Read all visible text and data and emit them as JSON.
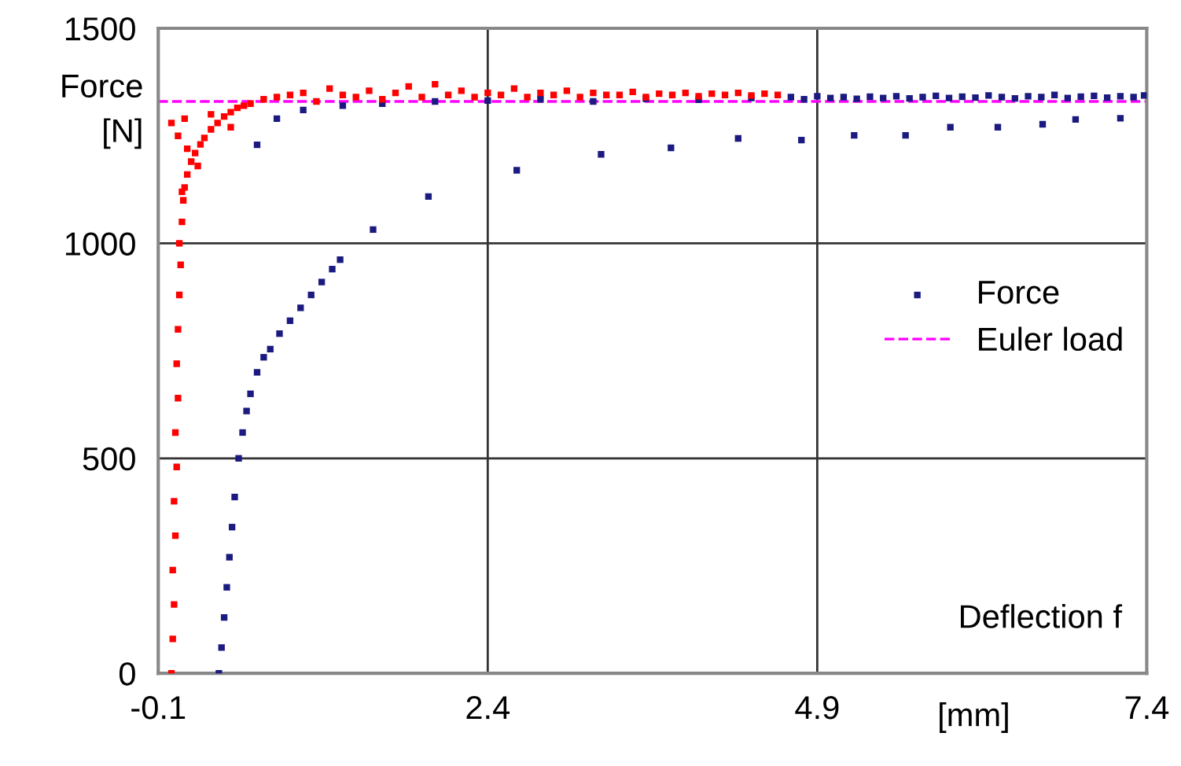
{
  "chart_data": {
    "type": "scatter",
    "ylabel": "Force\n[N]",
    "xlabel": "[mm]",
    "annotations": [
      "Deflection f"
    ],
    "xlim": [
      -0.1,
      7.4
    ],
    "xticks": [
      -0.1,
      2.4,
      4.9,
      7.4
    ],
    "ylim": [
      0,
      1500
    ],
    "yticks": [
      0,
      500,
      1000,
      1500
    ],
    "grid": true,
    "legend": "right",
    "marker": "square",
    "series": [
      {
        "name": "Force",
        "color": "#1a1a80",
        "x": [
          0.36,
          0.38,
          0.4,
          0.42,
          0.44,
          0.46,
          0.48,
          0.51,
          0.54,
          0.57,
          0.6,
          0.65,
          0.7,
          0.75,
          0.82,
          0.9,
          0.98,
          1.06,
          1.14,
          1.22,
          1.28,
          1.53,
          1.95,
          2.62,
          3.26,
          3.79,
          4.3,
          4.78,
          5.18,
          5.57,
          5.91,
          6.27,
          6.61,
          6.86,
          7.2,
          0.65,
          0.8,
          1.0,
          1.3,
          1.6,
          2.0,
          2.4,
          2.8,
          3.2,
          3.6,
          4.0,
          4.4,
          4.7,
          4.8,
          4.9,
          5.0,
          5.1,
          5.2,
          5.3,
          5.4,
          5.5,
          5.6,
          5.7,
          5.8,
          5.9,
          6.0,
          6.1,
          6.2,
          6.3,
          6.4,
          6.5,
          6.6,
          6.7,
          6.8,
          6.9,
          7.0,
          7.1,
          7.2,
          7.3,
          7.38
        ],
        "values": [
          0,
          60,
          130,
          200,
          270,
          340,
          410,
          500,
          560,
          610,
          650,
          700,
          735,
          754,
          790,
          820,
          850,
          880,
          910,
          940,
          962,
          1032,
          1109,
          1170,
          1207,
          1222,
          1244,
          1240,
          1251,
          1251,
          1270,
          1270,
          1277,
          1288,
          1291,
          1229,
          1290,
          1310,
          1320,
          1325,
          1330,
          1332,
          1335,
          1330,
          1336,
          1334,
          1338,
          1340,
          1335,
          1342,
          1338,
          1340,
          1336,
          1341,
          1338,
          1342,
          1337,
          1340,
          1343,
          1338,
          1341,
          1339,
          1344,
          1340,
          1337,
          1342,
          1340,
          1345,
          1338,
          1341,
          1343,
          1339,
          1342,
          1340,
          1344
        ]
      },
      {
        "color": "#ff0000",
        "x": [
          0.0,
          0.01,
          0.02,
          0.01,
          0.03,
          0.02,
          0.04,
          0.03,
          0.05,
          0.04,
          0.05,
          0.06,
          0.07,
          0.06,
          0.08,
          0.09,
          0.1,
          0.12,
          0.15,
          0.18,
          0.22,
          0.25,
          0.3,
          0.35,
          0.4,
          0.45,
          0.5,
          0.6,
          0.7,
          0.8,
          0.05,
          0.1,
          0.2,
          0.08,
          0.12,
          0.3,
          0.0,
          0.45,
          0.55,
          0.9,
          1.0,
          1.1,
          1.2,
          1.3,
          1.4,
          1.5,
          1.6,
          1.7,
          1.8,
          1.9,
          2.0,
          2.1,
          2.2,
          2.3,
          2.4,
          2.5,
          2.6,
          2.7,
          2.8,
          2.9,
          3.0,
          3.1,
          3.2,
          3.3,
          3.4,
          3.5,
          3.6,
          3.7,
          3.8,
          3.9,
          4.0,
          4.1,
          4.2,
          4.3,
          4.4,
          4.5,
          4.6
        ],
        "values": [
          0,
          80,
          160,
          240,
          320,
          400,
          480,
          560,
          640,
          720,
          800,
          880,
          950,
          1000,
          1050,
          1100,
          1130,
          1160,
          1190,
          1210,
          1230,
          1245,
          1265,
          1280,
          1295,
          1305,
          1315,
          1325,
          1335,
          1340,
          1250,
          1290,
          1180,
          1120,
          1220,
          1300,
          1280,
          1270,
          1320,
          1345,
          1350,
          1330,
          1360,
          1345,
          1340,
          1355,
          1335,
          1350,
          1365,
          1340,
          1370,
          1345,
          1355,
          1340,
          1350,
          1345,
          1360,
          1340,
          1350,
          1345,
          1355,
          1340,
          1350,
          1345,
          1345,
          1352,
          1340,
          1348,
          1345,
          1350,
          1342,
          1348,
          1345,
          1350,
          1344,
          1348,
          1345
        ]
      }
    ],
    "ref_lines": [
      {
        "axis": "y",
        "value": 1330,
        "label": "Euler load",
        "color": "#ff00ff",
        "line_style": "dashed"
      }
    ]
  }
}
